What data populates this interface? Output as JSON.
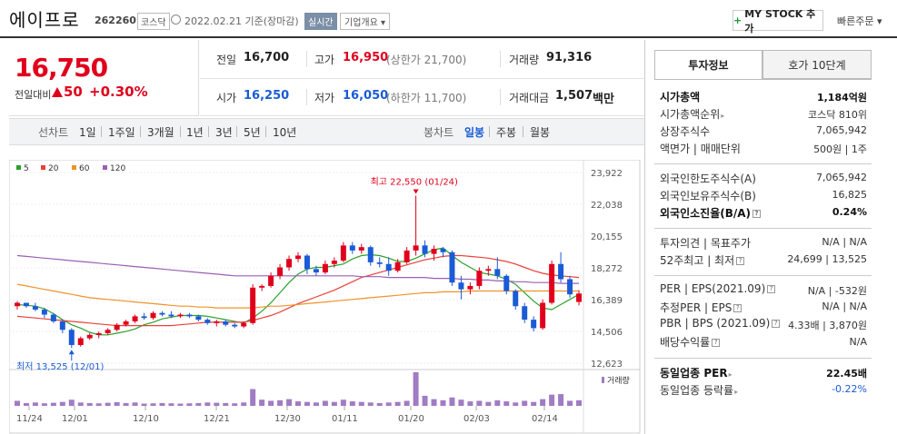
{
  "header": {
    "name": "에이프로",
    "code": "262260",
    "market": "코스닥",
    "base_date": "2022.02.21 기준(장마감)",
    "realtime": "실시간",
    "company_info": "기업개요 ▾",
    "mystock": "MY STOCK 추가",
    "mystock_plus": "+",
    "quick_order": "빠른주문 ▾"
  },
  "price": {
    "current": "16,750",
    "change_label": "전일대비",
    "change": "50",
    "rate": "+0.30%"
  },
  "summary": {
    "prev_label": "전일",
    "prev": "16,700",
    "high_label": "고가",
    "high": "16,950",
    "upper_limit": "(상한가 21,700)",
    "volume_label": "거래량",
    "volume": "91,316",
    "open_label": "시가",
    "open": "16,250",
    "low_label": "저가",
    "low": "16,050",
    "lower_limit": "(하한가 11,700)",
    "amount_label": "거래대금",
    "amount": "1,507",
    "amount_unit": "백만"
  },
  "period_bar": {
    "line_label": "선차트",
    "line_items": [
      "1일",
      "1주일",
      "3개월",
      "1년",
      "3년",
      "5년",
      "10년"
    ],
    "candle_label": "봉차트",
    "candle_items": [
      "일봉",
      "주봉",
      "월봉"
    ]
  },
  "colors": {
    "up": "#e0001c",
    "down": "#1a5bd6",
    "ma5": "#2ca02c",
    "ma20": "#e8413a",
    "ma60": "#f0922b",
    "ma120": "#9b5fb4",
    "volume": "#a07cc4"
  },
  "chart_data": {
    "type": "candlestick",
    "legend": [
      {
        "name": "5",
        "color": "#2ca02c"
      },
      {
        "name": "20",
        "color": "#e8413a"
      },
      {
        "name": "60",
        "color": "#f0922b"
      },
      {
        "name": "120",
        "color": "#9b5fb4"
      }
    ],
    "y_ticks": [
      "23,922",
      "22,038",
      "20,155",
      "18,272",
      "16,389",
      "14,506",
      "12,623"
    ],
    "ylim": [
      12623,
      23922
    ],
    "x_ticks": [
      "11/24",
      "12/01",
      "12/10",
      "12/21",
      "12/30",
      "01/11",
      "01/20",
      "02/03",
      "02/14"
    ],
    "high_annotation": "최고 22,550 (01/24)",
    "low_annotation": "최저 13,525 (12/01)",
    "volume_label": "거래량",
    "candles": [
      [
        16000,
        16300,
        15800,
        16200
      ],
      [
        16200,
        16100,
        15900,
        16000
      ],
      [
        16000,
        16200,
        15700,
        15800
      ],
      [
        15800,
        15900,
        15300,
        15500
      ],
      [
        15500,
        15600,
        15000,
        15100
      ],
      [
        15100,
        15200,
        14400,
        14600
      ],
      [
        14600,
        14700,
        13525,
        13700
      ],
      [
        13700,
        14200,
        13600,
        14100
      ],
      [
        14100,
        14400,
        14000,
        14300
      ],
      [
        14300,
        14500,
        14100,
        14400
      ],
      [
        14400,
        14700,
        14300,
        14600
      ],
      [
        14600,
        15000,
        14500,
        14900
      ],
      [
        14900,
        15200,
        14800,
        15100
      ],
      [
        15100,
        15500,
        15000,
        15400
      ],
      [
        15400,
        15600,
        15200,
        15300
      ],
      [
        15300,
        15700,
        15200,
        15600
      ],
      [
        15600,
        15700,
        15400,
        15500
      ],
      [
        15500,
        15700,
        15300,
        15400
      ],
      [
        15400,
        15600,
        15300,
        15500
      ],
      [
        15500,
        15600,
        15300,
        15400
      ],
      [
        15400,
        15500,
        15100,
        15200
      ],
      [
        15200,
        15300,
        14900,
        15000
      ],
      [
        15000,
        15200,
        14800,
        15100
      ],
      [
        15100,
        15200,
        14800,
        14900
      ],
      [
        14900,
        15000,
        14700,
        14800
      ],
      [
        14800,
        15100,
        14700,
        15000
      ],
      [
        15000,
        17300,
        14900,
        17100
      ],
      [
        17100,
        17300,
        16900,
        17200
      ],
      [
        17200,
        18000,
        17100,
        17800
      ],
      [
        17800,
        18500,
        17600,
        18300
      ],
      [
        18300,
        19000,
        18100,
        18800
      ],
      [
        18800,
        19200,
        18600,
        19000
      ],
      [
        19000,
        19100,
        17900,
        18200
      ],
      [
        18200,
        18400,
        17800,
        18000
      ],
      [
        18000,
        18700,
        17900,
        18500
      ],
      [
        18500,
        18900,
        18300,
        18700
      ],
      [
        18700,
        19800,
        18600,
        19600
      ],
      [
        19600,
        19800,
        19100,
        19300
      ],
      [
        19300,
        19700,
        19100,
        19500
      ],
      [
        19500,
        19600,
        18400,
        18600
      ],
      [
        18600,
        18900,
        18300,
        18500
      ],
      [
        18500,
        18900,
        17800,
        18100
      ],
      [
        18100,
        18800,
        18000,
        18600
      ],
      [
        18600,
        19500,
        18500,
        19300
      ],
      [
        19300,
        22550,
        19000,
        19600
      ],
      [
        19600,
        19900,
        18900,
        19100
      ],
      [
        19100,
        19600,
        18700,
        19400
      ],
      [
        19400,
        19500,
        18900,
        19200
      ],
      [
        19200,
        19300,
        17200,
        17400
      ],
      [
        17400,
        17800,
        16400,
        17000
      ],
      [
        17000,
        17400,
        16700,
        17200
      ],
      [
        17200,
        18300,
        17000,
        18100
      ],
      [
        18100,
        18400,
        17800,
        18200
      ],
      [
        18200,
        18900,
        17600,
        17800
      ],
      [
        17800,
        17900,
        16700,
        16900
      ],
      [
        16900,
        17000,
        15800,
        16000
      ],
      [
        16000,
        16200,
        15000,
        15200
      ],
      [
        15200,
        15400,
        14500,
        14700
      ],
      [
        14700,
        16400,
        14600,
        16200
      ],
      [
        16200,
        18700,
        16100,
        18500
      ],
      [
        18500,
        19200,
        17400,
        17600
      ],
      [
        17600,
        17800,
        16500,
        16700
      ],
      [
        16250,
        16950,
        16050,
        16750
      ]
    ],
    "volumes": [
      18,
      10,
      12,
      9,
      11,
      14,
      22,
      12,
      10,
      9,
      11,
      13,
      10,
      12,
      8,
      9,
      10,
      9,
      8,
      9,
      10,
      12,
      11,
      10,
      9,
      12,
      60,
      22,
      18,
      20,
      24,
      16,
      14,
      12,
      18,
      14,
      22,
      16,
      14,
      12,
      10,
      12,
      14,
      18,
      120,
      36,
      24,
      20,
      30,
      22,
      16,
      18,
      14,
      20,
      16,
      12,
      18,
      14,
      24,
      40,
      42,
      18,
      20
    ],
    "ma": {
      "ma5": [
        16100,
        16050,
        16000,
        15850,
        15550,
        15200,
        14900,
        14700,
        14450,
        14300,
        14300,
        14400,
        14500,
        14650,
        14900,
        15050,
        15250,
        15350,
        15450,
        15450,
        15450,
        15400,
        15300,
        15200,
        15100,
        15000,
        15300,
        15700,
        16200,
        16800,
        17400,
        17900,
        18200,
        18300,
        18300,
        18400,
        18500,
        18800,
        19000,
        19050,
        19000,
        18850,
        18650,
        18650,
        18850,
        19100,
        19350,
        19450,
        19000,
        18600,
        18300,
        18000,
        17900,
        17800,
        17600,
        17300,
        16800,
        16300,
        15900,
        15800,
        16100,
        16400,
        16700
      ],
      "ma20": [
        15400,
        15350,
        15300,
        15250,
        15200,
        15150,
        15100,
        15050,
        15000,
        14950,
        14900,
        14850,
        14850,
        14850,
        14850,
        14850,
        14850,
        14850,
        14900,
        14950,
        15000,
        15050,
        15050,
        15050,
        15050,
        15050,
        15150,
        15300,
        15450,
        15650,
        15900,
        16150,
        16350,
        16550,
        16750,
        16950,
        17200,
        17450,
        17700,
        17850,
        18000,
        18150,
        18300,
        18450,
        18600,
        18750,
        18850,
        18950,
        19000,
        19000,
        18950,
        18900,
        18850,
        18750,
        18650,
        18500,
        18300,
        18100,
        17950,
        17850,
        17800,
        17750,
        17700
      ],
      "ma60": [
        17300,
        17200,
        17100,
        17000,
        16900,
        16800,
        16700,
        16600,
        16500,
        16450,
        16400,
        16350,
        16300,
        16250,
        16200,
        16150,
        16100,
        16050,
        16000,
        16000,
        15950,
        15950,
        15900,
        15900,
        15900,
        15900,
        15900,
        15950,
        16000,
        16000,
        16050,
        16100,
        16150,
        16200,
        16250,
        16300,
        16350,
        16400,
        16450,
        16500,
        16550,
        16600,
        16650,
        16700,
        16750,
        16800,
        16800,
        16850,
        16850,
        16850,
        16900,
        16900,
        16900,
        16900,
        16900,
        16900,
        16900,
        16900,
        16900,
        16900,
        16900,
        16900,
        16900
      ],
      "ma120": [
        19000,
        18950,
        18900,
        18850,
        18800,
        18750,
        18700,
        18650,
        18600,
        18550,
        18500,
        18450,
        18400,
        18350,
        18300,
        18250,
        18200,
        18150,
        18100,
        18050,
        18000,
        17950,
        17900,
        17850,
        17800,
        17800,
        17800,
        17800,
        17800,
        17800,
        17800,
        17800,
        17800,
        17800,
        17800,
        17800,
        17800,
        17800,
        17750,
        17750,
        17750,
        17700,
        17700,
        17700,
        17700,
        17700,
        17650,
        17650,
        17650,
        17600,
        17600,
        17550,
        17550,
        17500,
        17500,
        17450,
        17450,
        17400,
        17400,
        17400,
        17350,
        17350,
        17350
      ]
    }
  },
  "right": {
    "tab_info": "투자정보",
    "tab_hoga": "호가 10단계",
    "rows1": [
      {
        "label": "시가총액",
        "value": "1,184억원"
      },
      {
        "label": "시가총액순위",
        "value": "코스닥 810위"
      },
      {
        "label": "상장주식수",
        "value": "7,065,942"
      },
      {
        "label": "액면가 | 매매단위",
        "value": "500원 | 1주"
      }
    ],
    "rows2": [
      {
        "label": "외국인한도주식수(A)",
        "value": "7,065,942"
      },
      {
        "label": "외국인보유주식수(B)",
        "value": "16,825"
      },
      {
        "label": "외국인소진율(B/A)",
        "value": "0.24%"
      }
    ],
    "rows3": [
      {
        "label": "투자의견 | 목표주가",
        "value": "N/A | N/A"
      },
      {
        "label": "52주최고 | 최저",
        "value": "24,699 | 13,525"
      }
    ],
    "rows4": [
      {
        "label": "PER | EPS(2021.09)",
        "value": "N/A | -532원"
      },
      {
        "label": "추정PER | EPS",
        "value": "N/A | N/A"
      },
      {
        "label": "PBR | BPS (2021.09)",
        "value": "4.33배 | 3,870원"
      },
      {
        "label": "배당수익률",
        "value": "N/A"
      }
    ],
    "rows5": [
      {
        "label": "동일업종 PER",
        "value": "22.45배"
      },
      {
        "label": "동일업종 등락률",
        "value": "-0.22%"
      }
    ]
  }
}
